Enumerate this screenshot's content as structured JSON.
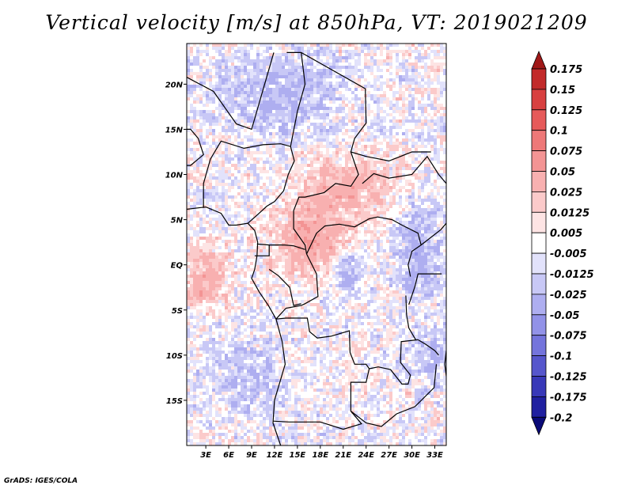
{
  "chart_data": {
    "type": "heatmap",
    "title": "Vertical velocity [m/s] at 850hPa, VT: 2019021209",
    "variable": "Vertical velocity",
    "units": "m/s",
    "level": "850hPa",
    "valid_time": "2019021209",
    "x_axis": {
      "labels": [
        "3E",
        "6E",
        "9E",
        "12E",
        "15E",
        "18E",
        "21E",
        "24E",
        "27E",
        "30E",
        "33E"
      ],
      "values": [
        3,
        6,
        9,
        12,
        15,
        18,
        21,
        24,
        27,
        30,
        33
      ],
      "range": [
        0.5,
        34.5
      ]
    },
    "y_axis": {
      "labels": [
        "20N",
        "15N",
        "10N",
        "5N",
        "EQ",
        "5S",
        "10S",
        "15S"
      ],
      "values": [
        20,
        15,
        10,
        5,
        0,
        -5,
        -10,
        -15
      ],
      "range": [
        -20,
        24.5
      ]
    },
    "colorbar": {
      "orientation": "vertical",
      "position": "right",
      "levels": [
        "0.175",
        "0.15",
        "0.125",
        "0.1",
        "0.075",
        "0.05",
        "0.025",
        "0.0125",
        "0.005",
        "-0.005",
        "-0.0125",
        "-0.025",
        "-0.05",
        "-0.075",
        "-0.1",
        "-0.125",
        "-0.175",
        "-0.2"
      ],
      "colors": [
        "#a01818",
        "#c22a2a",
        "#d84040",
        "#e65a5a",
        "#ee7878",
        "#f39494",
        "#f8b0b0",
        "#fbcaca",
        "#fde4e4",
        "#ffffff",
        "#e2e2fb",
        "#c8c8f6",
        "#aeaef0",
        "#9292e8",
        "#7474dc",
        "#5656cc",
        "#3838b8",
        "#2020a0",
        "#0a0a78"
      ]
    },
    "field_summary": "Noisy mixed field; weak ascent (red) bands over central Africa (10N-5S, 12E-30E) and equatorial Atlantic near 0-5S, 0-6E; weak descent (blue) patches over Sahara, Congo basin and east Africa."
  },
  "footer": {
    "credit": "GrADS: IGES/COLA"
  }
}
